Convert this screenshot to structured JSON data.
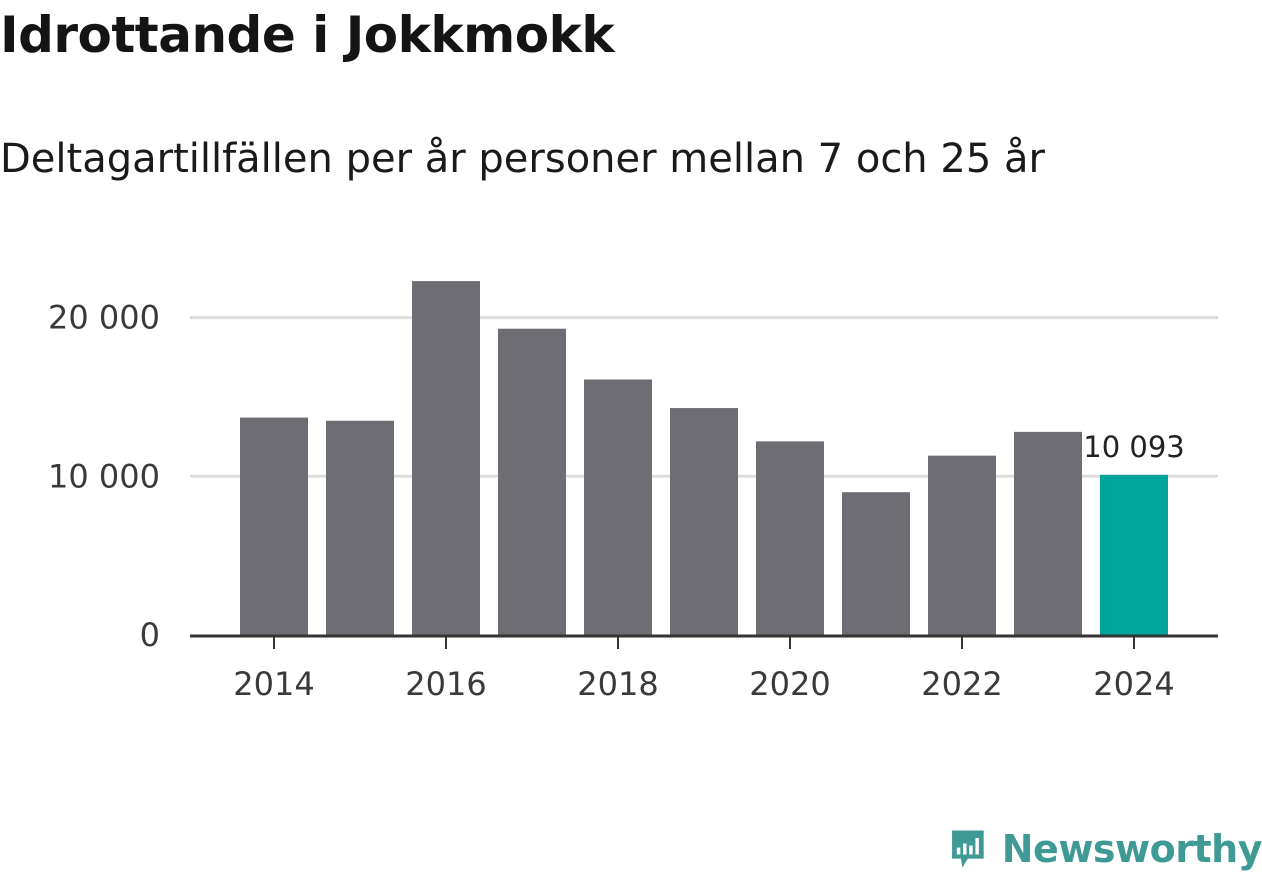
{
  "header": {
    "title": "Idrottande i Jokkmokk",
    "subtitle": "Deltagartillfällen per år personer mellan 7 och 25 år"
  },
  "chart_data": {
    "type": "bar",
    "categories": [
      "2014",
      "2015",
      "2016",
      "2017",
      "2018",
      "2019",
      "2020",
      "2021",
      "2022",
      "2023",
      "2024"
    ],
    "values": [
      13700,
      13500,
      22300,
      19300,
      16100,
      14300,
      12200,
      9000,
      11300,
      12800,
      10093
    ],
    "highlight_index": 10,
    "data_labels": [
      {
        "category": "2024",
        "text": "10 093"
      }
    ],
    "x_tick_labels": [
      "2014",
      "2016",
      "2018",
      "2020",
      "2022",
      "2024"
    ],
    "y_ticks": [
      {
        "value": 0,
        "label": "0"
      },
      {
        "value": 10000,
        "label": "10 000"
      },
      {
        "value": 20000,
        "label": "20 000"
      }
    ],
    "ylim": [
      0,
      23000
    ],
    "grid": "horizontal",
    "colors": {
      "bar": "#6e6d73",
      "highlight": "#00a599",
      "grid": "#dddddd",
      "axis": "#333333"
    }
  },
  "branding": {
    "logo_text": "Newsworthy",
    "logo_icon": "newsworthy-chart-bubble-icon",
    "logo_color": "#3f9a96"
  }
}
